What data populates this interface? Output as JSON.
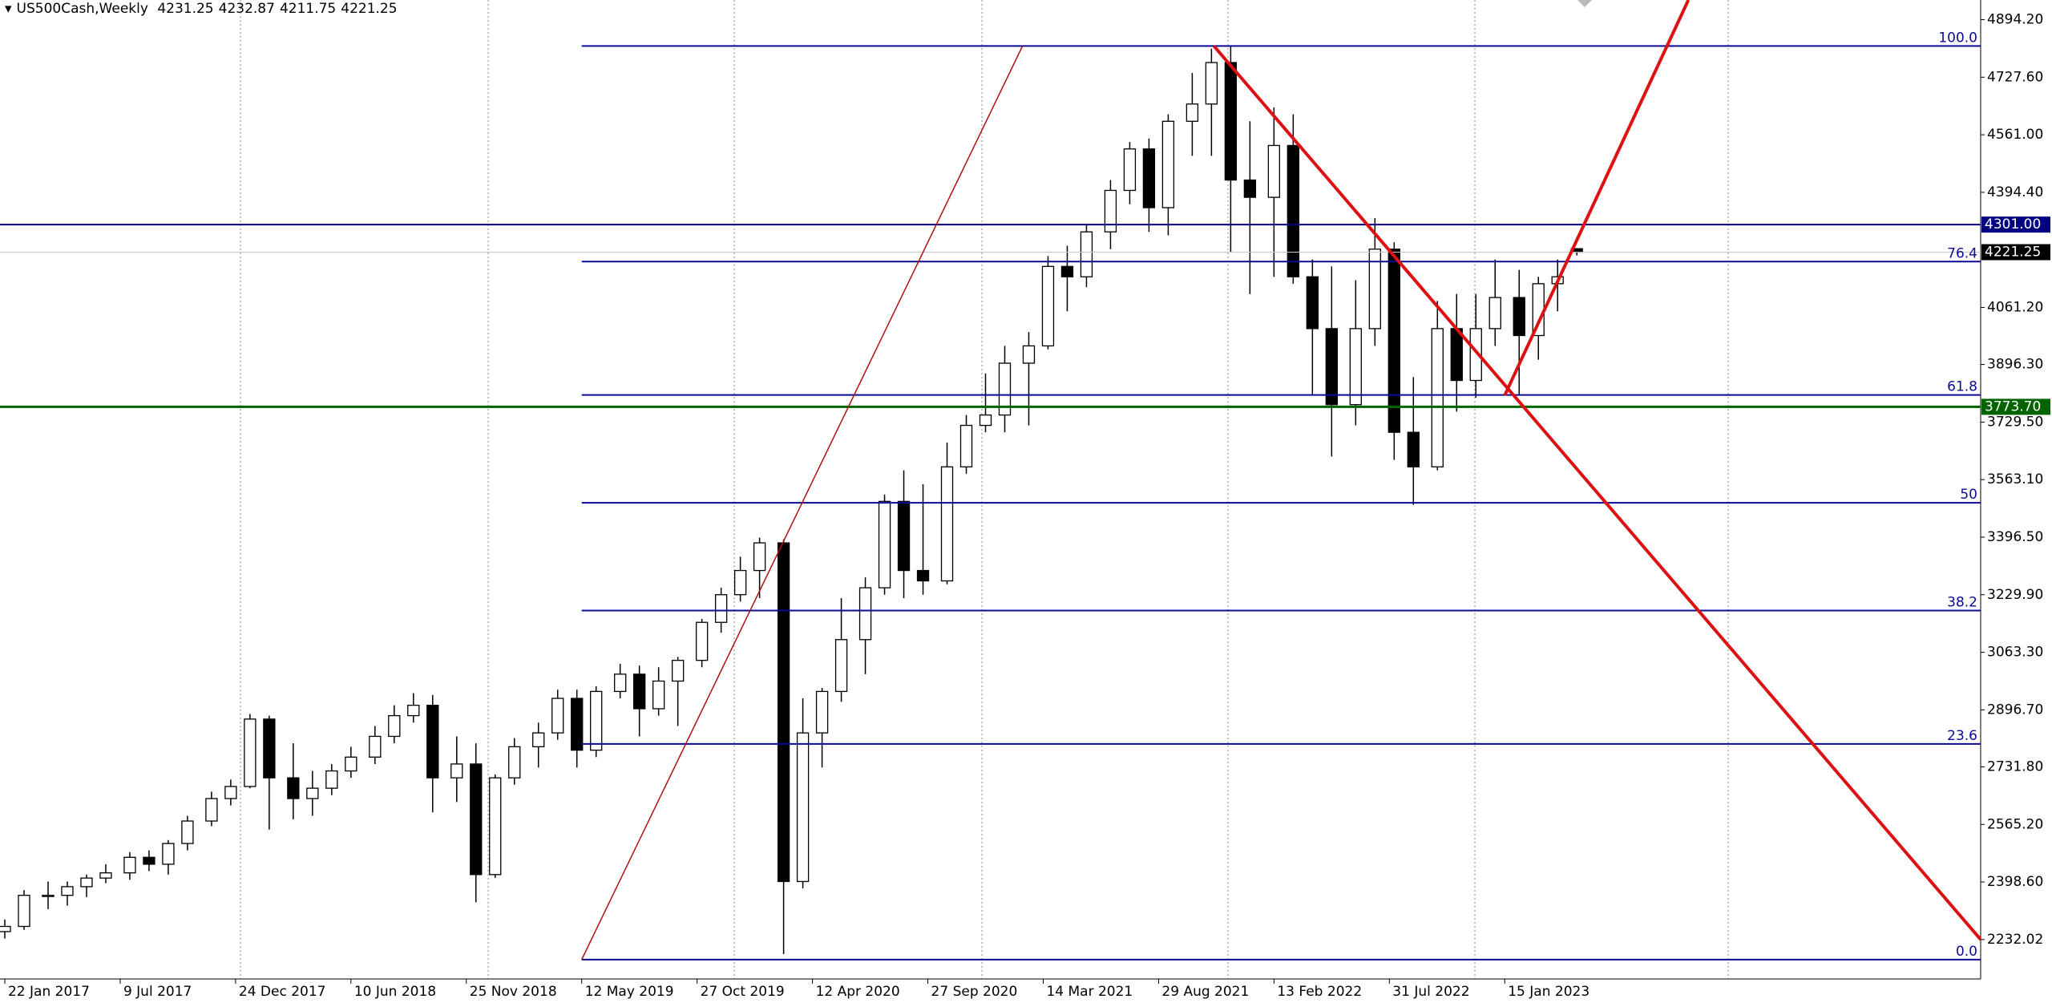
{
  "chart_data": {
    "type": "candlestick",
    "title": "US500Cash,Weekly",
    "x": [
      0,
      4,
      9,
      13,
      17,
      21,
      26,
      30,
      34,
      38,
      43,
      47,
      51,
      55,
      60,
      64,
      68,
      72,
      77,
      81,
      85,
      89,
      94,
      98,
      102,
      106,
      111,
      115,
      119,
      123,
      128,
      132,
      136,
      140,
      145,
      149,
      153,
      157,
      162,
      166,
      170,
      174,
      179,
      183,
      187,
      191,
      196,
      200,
      204,
      208,
      213,
      217,
      221,
      225,
      230,
      234,
      238,
      242,
      247,
      251,
      255,
      259,
      264,
      268,
      272,
      276,
      281,
      285,
      289,
      293,
      298,
      302,
      306,
      310,
      315,
      319,
      323,
      327
    ],
    "open": [
      2255,
      2270,
      2360,
      2360,
      2385,
      2410,
      2425,
      2470,
      2450,
      2510,
      2575,
      2640,
      2675,
      2870,
      2700,
      2640,
      2670,
      2720,
      2760,
      2820,
      2880,
      2910,
      2700,
      2740,
      2420,
      2700,
      2790,
      2830,
      2930,
      2780,
      2950,
      3000,
      2900,
      2980,
      3040,
      3150,
      3230,
      3300,
      3380,
      2400,
      2830,
      2950,
      3100,
      3250,
      3500,
      3300,
      3270,
      3600,
      3720,
      3750,
      3900,
      3950,
      4180,
      4150,
      4280,
      4400,
      4520,
      4350,
      4600,
      4650,
      4770,
      4430,
      4380,
      4530,
      4150,
      4000,
      3780,
      4000,
      4230,
      3700,
      3600,
      4000,
      3850,
      4000,
      4090,
      3980,
      4130,
      4231.25
    ],
    "high": [
      2290,
      2375,
      2400,
      2400,
      2420,
      2450,
      2485,
      2490,
      2520,
      2590,
      2660,
      2695,
      2885,
      2880,
      2800,
      2720,
      2740,
      2790,
      2850,
      2910,
      2945,
      2940,
      2820,
      2800,
      2710,
      2815,
      2860,
      2955,
      2955,
      2965,
      3030,
      3025,
      3020,
      3050,
      3160,
      3250,
      3340,
      3395,
      3390,
      2930,
      2960,
      3220,
      3280,
      3520,
      3590,
      3550,
      3670,
      3750,
      3870,
      3950,
      3990,
      4210,
      4240,
      4300,
      4430,
      4540,
      4550,
      4620,
      4740,
      4810,
      4818,
      4600,
      4640,
      4620,
      4200,
      4180,
      4140,
      4320,
      4250,
      3860,
      4080,
      4100,
      4100,
      4200,
      4170,
      4150,
      4200,
      4232.87
    ],
    "low": [
      2235,
      2260,
      2320,
      2330,
      2355,
      2395,
      2405,
      2430,
      2420,
      2490,
      2560,
      2620,
      2670,
      2550,
      2580,
      2590,
      2650,
      2700,
      2740,
      2800,
      2860,
      2600,
      2630,
      2340,
      2410,
      2680,
      2730,
      2810,
      2730,
      2760,
      2930,
      2820,
      2880,
      2850,
      3020,
      3120,
      3210,
      3220,
      2190,
      2380,
      2730,
      2920,
      3000,
      3230,
      3220,
      3230,
      3260,
      3580,
      3700,
      3700,
      3720,
      3940,
      4050,
      4120,
      4230,
      4360,
      4280,
      4270,
      4500,
      4500,
      4220,
      4100,
      4150,
      4130,
      3810,
      3630,
      3720,
      3950,
      3620,
      3490,
      3590,
      3760,
      3800,
      3950,
      3810,
      3910,
      4050,
      4211.75
    ],
    "close": [
      2270,
      2360,
      2360,
      2385,
      2410,
      2425,
      2470,
      2450,
      2510,
      2575,
      2640,
      2675,
      2870,
      2700,
      2640,
      2670,
      2720,
      2760,
      2820,
      2880,
      2910,
      2700,
      2740,
      2420,
      2700,
      2790,
      2830,
      2930,
      2780,
      2950,
      3000,
      2900,
      2980,
      3040,
      3150,
      3230,
      3300,
      3380,
      2400,
      2830,
      2950,
      3100,
      3250,
      3500,
      3300,
      3270,
      3600,
      3720,
      3750,
      3900,
      3950,
      4180,
      4150,
      4280,
      4400,
      4520,
      4350,
      4600,
      4650,
      4770,
      4430,
      4380,
      4530,
      4150,
      4000,
      3780,
      4000,
      4230,
      3700,
      3600,
      4000,
      3850,
      4000,
      4090,
      3980,
      4130,
      4150,
      4221.25
    ],
    "up_color": "#ffffff",
    "down_color": "#000000",
    "xlim": [
      -1,
      411
    ],
    "xticks": [
      {
        "value": 0,
        "label": "22 Jan 2017"
      },
      {
        "value": 24,
        "label": "9 Jul 2017"
      },
      {
        "value": 48,
        "label": "24 Dec 2017"
      },
      {
        "value": 72,
        "label": "10 Jun 2018"
      },
      {
        "value": 96,
        "label": "25 Nov 2018"
      },
      {
        "value": 120,
        "label": "12 May 2019"
      },
      {
        "value": 144,
        "label": "27 Oct 2019"
      },
      {
        "value": 168,
        "label": "12 Apr 2020"
      },
      {
        "value": 192,
        "label": "27 Sep 2020"
      },
      {
        "value": 216,
        "label": "14 Mar 2021"
      },
      {
        "value": 240,
        "label": "29 Aug 2021"
      },
      {
        "value": 264,
        "label": "13 Feb 2022"
      },
      {
        "value": 288,
        "label": "31 Jul 2022"
      },
      {
        "value": 312,
        "label": "15 Jan 2023"
      }
    ],
    "ylim": [
      2118,
      4951
    ],
    "yticks": [
      {
        "value": 4894.2,
        "label": "4894.20"
      },
      {
        "value": 4727.6,
        "label": "4727.60"
      },
      {
        "value": 4561,
        "label": "4561.00"
      },
      {
        "value": 4394.4,
        "label": "4394.40"
      },
      {
        "value": 4061.2,
        "label": "4061.20"
      },
      {
        "value": 3896.3,
        "label": "3896.30"
      },
      {
        "value": 3729.5,
        "label": "3729.50"
      },
      {
        "value": 3563.1,
        "label": "3563.10"
      },
      {
        "value": 3396.5,
        "label": "3396.50"
      },
      {
        "value": 3229.9,
        "label": "3229.90"
      },
      {
        "value": 3063.3,
        "label": "3063.30"
      },
      {
        "value": 2896.7,
        "label": "2896.70"
      },
      {
        "value": 2731.8,
        "label": "2731.80"
      },
      {
        "value": 2565.2,
        "label": "2565.20"
      },
      {
        "value": 2398.6,
        "label": "2398.60"
      },
      2232.02
    ],
    "fibonacci": {
      "color": "#0a0a96",
      "start_x": 120,
      "y": [
        2174,
        4818
      ],
      "levels": [
        {
          "value": 0,
          "label": "0.0"
        },
        23.6,
        38.2,
        50,
        61.8,
        76.4,
        {
          "value": 100,
          "label": "100.0"
        }
      ]
    },
    "hlines": [
      {
        "value": 4301,
        "label": "4301.00",
        "color": "#000080",
        "width": 2
      },
      {
        "value": 3773.7,
        "label": "3773.70",
        "color": "#006400",
        "width": 3
      }
    ],
    "trendlines": [
      {
        "color": "#b01010",
        "width": 1.5,
        "x": [
          120,
          211.7
        ],
        "y": [
          2174,
          4818
        ]
      },
      {
        "color": "#dd1111",
        "width": 4,
        "x": [
          251.5,
          411
        ],
        "y": [
          4818,
          2232
        ]
      },
      {
        "color": "#dd1111",
        "width": 4,
        "x": [
          312,
          350.2
        ],
        "y": [
          3807,
          4951
        ]
      }
    ]
  }
}
